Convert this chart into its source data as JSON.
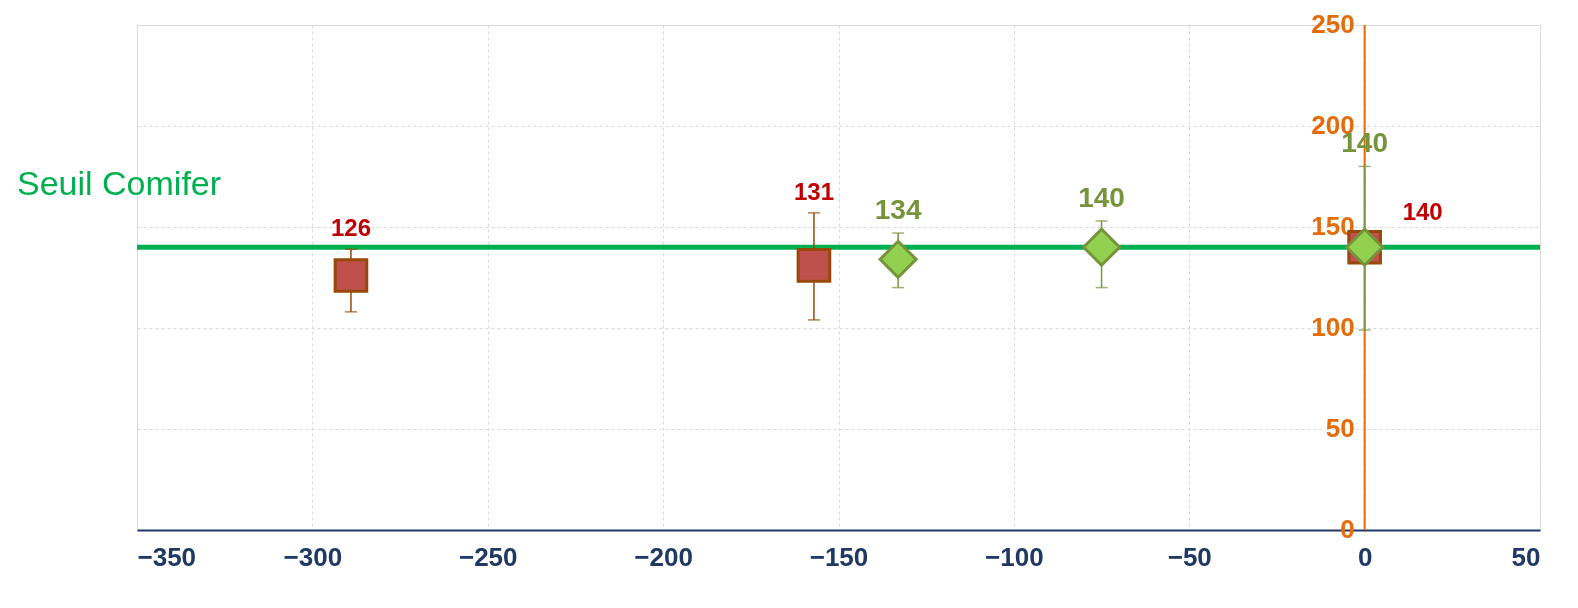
{
  "chart_data": {
    "type": "scatter",
    "xlim": [
      -350,
      50
    ],
    "xticks": [
      -350,
      -300,
      -250,
      -200,
      -150,
      -100,
      -50,
      0,
      50
    ],
    "ylim": [
      0,
      250
    ],
    "yticks": [
      0,
      50,
      100,
      150,
      200,
      250
    ],
    "grid": true,
    "data_labels": true,
    "series": [
      {
        "marker": "square",
        "color": "#c0504d",
        "x": [
          -289,
          -157,
          0
        ],
        "values": [
          126,
          131,
          140
        ],
        "errors": [
          [
            108,
            139
          ],
          [
            104,
            157
          ],
          null
        ]
      },
      {
        "marker": "diamond",
        "color": "#92d050",
        "x": [
          -133,
          -75,
          0
        ],
        "values": [
          134,
          140,
          140
        ],
        "errors": [
          [
            120,
            147
          ],
          [
            120,
            153
          ],
          [
            99,
            180
          ]
        ]
      }
    ],
    "ref_lines": [
      {
        "axis": "y",
        "value": 140,
        "label": "Seuil Comifer",
        "color": "#00b050"
      }
    ]
  }
}
